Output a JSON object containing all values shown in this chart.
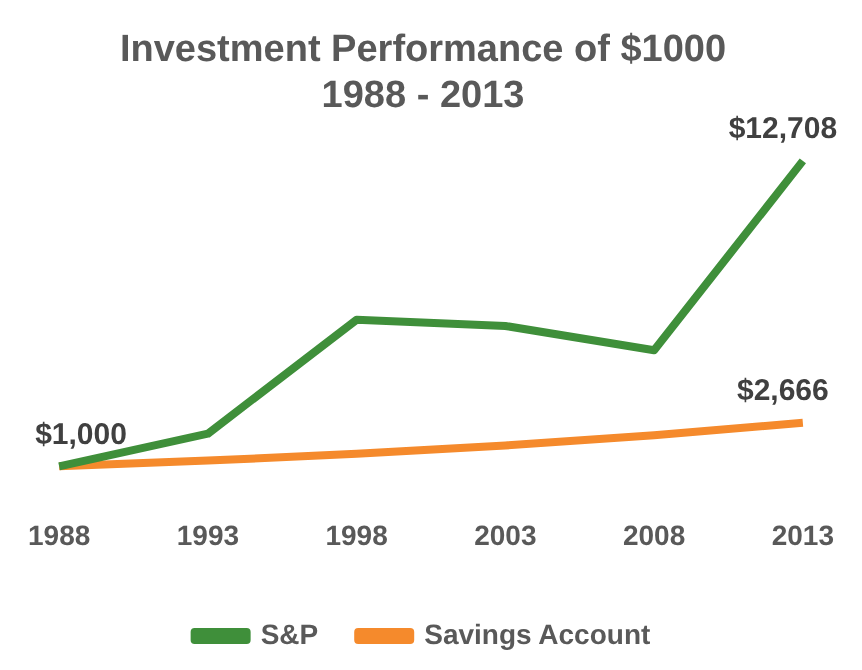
{
  "chart_data": {
    "type": "line",
    "title": "Investment Performance of $1000",
    "subtitle": "1988 - 2013",
    "categories": [
      "1988",
      "1993",
      "1998",
      "2003",
      "2008",
      "2013"
    ],
    "series": [
      {
        "name": "S&P",
        "color": "#3f8f3a",
        "values": [
          1000,
          2250,
          6620,
          6380,
          5450,
          12708
        ],
        "value_labels": [
          "$1,000",
          null,
          null,
          null,
          null,
          "$12,708"
        ]
      },
      {
        "name": "Savings Account",
        "color": "#f58a2c",
        "values": [
          1000,
          1220,
          1480,
          1800,
          2190,
          2666
        ],
        "value_labels": [
          null,
          null,
          null,
          null,
          null,
          "$2,666"
        ]
      }
    ],
    "grid": false,
    "legend": "bottom",
    "marker": "none",
    "line_style": "solid"
  }
}
